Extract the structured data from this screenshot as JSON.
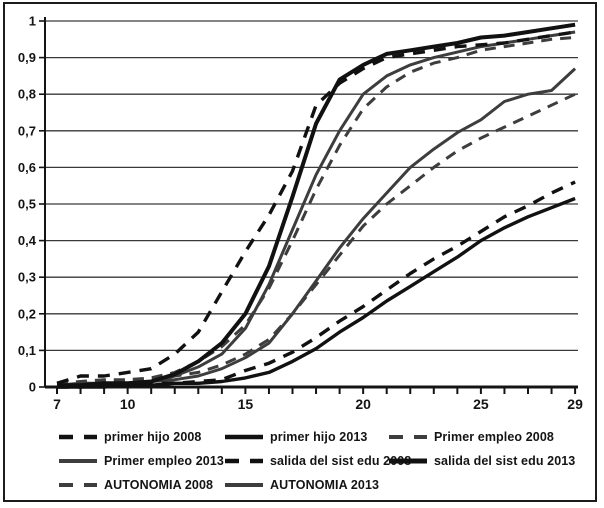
{
  "figure": {
    "background": "#ffffff",
    "border_color": "#1c1c1c",
    "title": "",
    "colors": {
      "black": "#111111",
      "gray": "#3d3d3d",
      "gridline": "#3a3a3a"
    }
  },
  "chart_data": {
    "type": "line",
    "title": "",
    "xlabel": "",
    "ylabel": "",
    "grid": "horizontal",
    "legend_position": "bottom",
    "decimal_separator": ",",
    "xlim": [
      7,
      29
    ],
    "ylim": [
      0,
      1
    ],
    "x": [
      7,
      8,
      9,
      10,
      11,
      12,
      13,
      14,
      15,
      16,
      17,
      18,
      19,
      20,
      21,
      22,
      23,
      24,
      25,
      26,
      27,
      28,
      29
    ],
    "x_ticks": [
      {
        "value": 7,
        "label": "7"
      },
      {
        "value": 10,
        "label": "10"
      },
      {
        "value": 15,
        "label": "15"
      },
      {
        "value": 20,
        "label": "20"
      },
      {
        "value": 25,
        "label": "25"
      },
      {
        "value": 29,
        "label": "29"
      }
    ],
    "y_ticks": [
      {
        "value": 0,
        "label": "0"
      },
      {
        "value": 0.1,
        "label": "0,1"
      },
      {
        "value": 0.2,
        "label": "0,2"
      },
      {
        "value": 0.3,
        "label": "0,3"
      },
      {
        "value": 0.4,
        "label": "0,4"
      },
      {
        "value": 0.5,
        "label": "0,5"
      },
      {
        "value": 0.6,
        "label": "0,6"
      },
      {
        "value": 0.7,
        "label": "0,7"
      },
      {
        "value": 0.8,
        "label": "0,8"
      },
      {
        "value": 0.9,
        "label": "0,9"
      },
      {
        "value": 1,
        "label": "1"
      }
    ],
    "series": [
      {
        "name": "primer hijo 2008",
        "event": "primer hijo",
        "year": "2008",
        "color": "black",
        "style": "dashed",
        "width": 3.4,
        "values": [
          0,
          0,
          0.005,
          0.005,
          0.01,
          0.01,
          0.015,
          0.02,
          0.045,
          0.065,
          0.095,
          0.135,
          0.18,
          0.22,
          0.265,
          0.31,
          0.35,
          0.385,
          0.425,
          0.465,
          0.495,
          0.53,
          0.56
        ]
      },
      {
        "name": "primer hijo 2013",
        "event": "primer hijo",
        "year": "2013",
        "color": "black",
        "style": "solid",
        "width": 3.4,
        "values": [
          0,
          0,
          0,
          0.005,
          0.005,
          0.01,
          0.01,
          0.015,
          0.025,
          0.04,
          0.07,
          0.105,
          0.15,
          0.19,
          0.235,
          0.275,
          0.315,
          0.355,
          0.4,
          0.435,
          0.465,
          0.49,
          0.515
        ]
      },
      {
        "name": "Primer empleo 2008",
        "event": "Primer empleo",
        "year": "2008",
        "color": "gray",
        "style": "dashed",
        "width": 3,
        "values": [
          0.01,
          0.015,
          0.02,
          0.02,
          0.025,
          0.04,
          0.07,
          0.11,
          0.17,
          0.27,
          0.4,
          0.54,
          0.66,
          0.76,
          0.82,
          0.86,
          0.885,
          0.9,
          0.92,
          0.93,
          0.94,
          0.95,
          0.955
        ]
      },
      {
        "name": "Primer empleo 2013",
        "event": "Primer empleo",
        "year": "2013",
        "color": "gray",
        "style": "solid",
        "width": 3,
        "values": [
          0.005,
          0.01,
          0.01,
          0.01,
          0.015,
          0.03,
          0.055,
          0.09,
          0.16,
          0.28,
          0.43,
          0.58,
          0.7,
          0.8,
          0.85,
          0.88,
          0.9,
          0.915,
          0.93,
          0.94,
          0.95,
          0.96,
          0.97
        ]
      },
      {
        "name": "salida del sist edu 2008",
        "event": "salida del sist edu",
        "year": "2008",
        "color": "black",
        "style": "dashed",
        "width": 3.4,
        "values": [
          0.01,
          0.03,
          0.03,
          0.04,
          0.05,
          0.09,
          0.15,
          0.26,
          0.37,
          0.47,
          0.59,
          0.77,
          0.83,
          0.87,
          0.9,
          0.91,
          0.92,
          0.93,
          0.935,
          0.94,
          0.95,
          0.96,
          0.97
        ]
      },
      {
        "name": "salida del sist edu 2013",
        "event": "salida del sist edu",
        "year": "2013",
        "color": "black",
        "style": "solid",
        "width": 4,
        "values": [
          0.005,
          0.005,
          0.01,
          0.01,
          0.015,
          0.035,
          0.07,
          0.12,
          0.2,
          0.33,
          0.52,
          0.72,
          0.84,
          0.88,
          0.91,
          0.92,
          0.93,
          0.94,
          0.955,
          0.96,
          0.97,
          0.98,
          0.99
        ]
      },
      {
        "name": "AUTONOMIA 2008",
        "event": "AUTONOMIA",
        "year": "2008",
        "color": "gray",
        "style": "dashed",
        "width": 3,
        "values": [
          0.01,
          0.01,
          0.015,
          0.02,
          0.02,
          0.03,
          0.04,
          0.06,
          0.09,
          0.13,
          0.2,
          0.28,
          0.36,
          0.44,
          0.5,
          0.55,
          0.6,
          0.645,
          0.68,
          0.71,
          0.74,
          0.77,
          0.8
        ]
      },
      {
        "name": "AUTONOMIA 2013",
        "event": "AUTONOMIA",
        "year": "2013",
        "color": "gray",
        "style": "solid",
        "width": 3,
        "values": [
          0.005,
          0.005,
          0.01,
          0.01,
          0.015,
          0.02,
          0.03,
          0.05,
          0.08,
          0.12,
          0.2,
          0.29,
          0.38,
          0.46,
          0.53,
          0.6,
          0.65,
          0.695,
          0.73,
          0.78,
          0.8,
          0.81,
          0.87
        ]
      }
    ],
    "legend_rows": [
      [
        0,
        1,
        2
      ],
      [
        3,
        4,
        5
      ],
      [
        6,
        7
      ]
    ]
  }
}
